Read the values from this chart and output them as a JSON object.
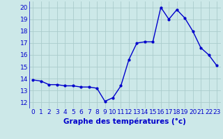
{
  "x": [
    0,
    1,
    2,
    3,
    4,
    5,
    6,
    7,
    8,
    9,
    10,
    11,
    12,
    13,
    14,
    15,
    16,
    17,
    18,
    19,
    20,
    21,
    22,
    23
  ],
  "y": [
    13.9,
    13.8,
    13.5,
    13.5,
    13.4,
    13.4,
    13.3,
    13.3,
    13.2,
    12.1,
    12.4,
    13.4,
    15.6,
    17.0,
    17.1,
    17.1,
    20.0,
    19.0,
    19.8,
    19.1,
    18.0,
    16.6,
    16.0,
    15.1
  ],
  "line_color": "#0000cc",
  "marker": ".",
  "marker_size": 4,
  "line_width": 1.0,
  "bg_color": "#cce8e8",
  "grid_color": "#aacccc",
  "xlabel": "Graphe des températures (°c)",
  "xlabel_color": "#0000cc",
  "xlabel_fontsize": 7.5,
  "tick_color": "#0000cc",
  "tick_fontsize": 6.5,
  "ylim": [
    11.5,
    20.5
  ],
  "xlim": [
    -0.5,
    23.5
  ],
  "yticks": [
    12,
    13,
    14,
    15,
    16,
    17,
    18,
    19,
    20
  ],
  "xticks": [
    0,
    1,
    2,
    3,
    4,
    5,
    6,
    7,
    8,
    9,
    10,
    11,
    12,
    13,
    14,
    15,
    16,
    17,
    18,
    19,
    20,
    21,
    22,
    23
  ]
}
